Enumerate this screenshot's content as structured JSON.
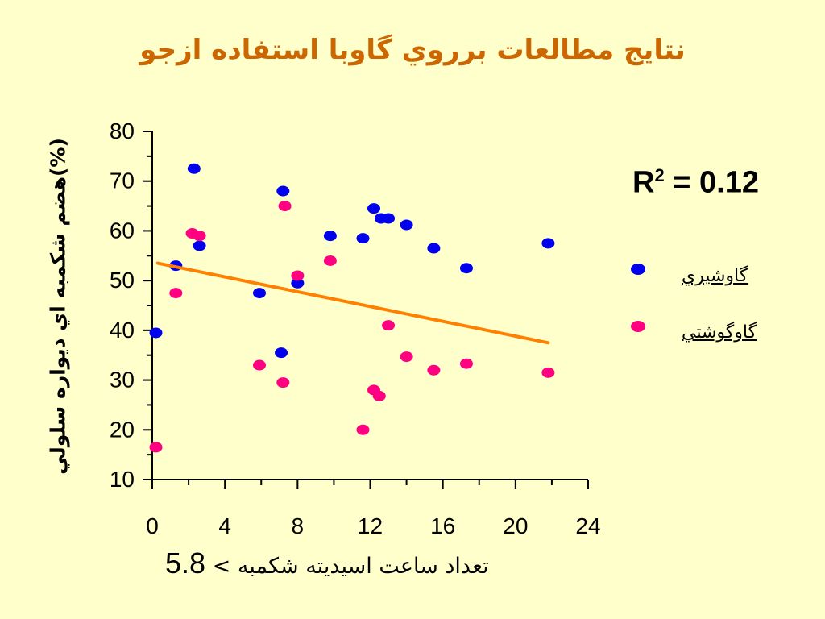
{
  "title": "نتايج مطالعات برروي گاوبا استفاده ازجو",
  "r2_label": "R",
  "r2_sup": "2",
  "r2_value": " = 0.12",
  "colors": {
    "background": "#ffffcc",
    "title": "#cc6600",
    "series1": "#0000ee",
    "series2": "#ff0080",
    "trend": "#ff8000"
  },
  "chart_data": {
    "type": "scatter",
    "xlabel_prefix": "5.8",
    "xlabel_text": " < تعداد ساعت اسيديته شکمبه",
    "ylabel": "هضم شکمبه اي ديواره سلولي(%)",
    "xlim": [
      0,
      24
    ],
    "ylim": [
      10,
      80
    ],
    "xticks": [
      "0",
      "4",
      "8",
      "12",
      "16",
      "20",
      "24"
    ],
    "yticks": [
      "10",
      "20",
      "30",
      "40",
      "50",
      "60",
      "70",
      "80"
    ],
    "series": [
      {
        "name": "گاوشيري",
        "color": "#0000ee",
        "points": [
          [
            0.2,
            39.5
          ],
          [
            1.3,
            53
          ],
          [
            2.3,
            72.5
          ],
          [
            2.6,
            57
          ],
          [
            5.9,
            47.5
          ],
          [
            7.1,
            35.5
          ],
          [
            7.2,
            68
          ],
          [
            8.0,
            49.5
          ],
          [
            9.8,
            59
          ],
          [
            11.6,
            58.5
          ],
          [
            12.2,
            64.5
          ],
          [
            12.6,
            62.5
          ],
          [
            13.0,
            62.5
          ],
          [
            14.0,
            61.2
          ],
          [
            15.5,
            56.5
          ],
          [
            17.3,
            52.5
          ],
          [
            21.8,
            57.5
          ]
        ]
      },
      {
        "name": "گاوگوشتي",
        "color": "#ff0080",
        "points": [
          [
            0.2,
            16.5
          ],
          [
            1.3,
            47.5
          ],
          [
            2.2,
            59.5
          ],
          [
            2.6,
            59
          ],
          [
            5.9,
            33
          ],
          [
            7.2,
            29.5
          ],
          [
            7.3,
            65
          ],
          [
            8.0,
            51
          ],
          [
            9.8,
            54
          ],
          [
            11.6,
            20
          ],
          [
            12.2,
            28
          ],
          [
            12.5,
            26.8
          ],
          [
            13.0,
            41
          ],
          [
            14.0,
            34.7
          ],
          [
            15.5,
            32
          ],
          [
            17.3,
            33.3
          ],
          [
            21.8,
            31.5
          ]
        ]
      }
    ],
    "trendline": {
      "x": [
        0.3,
        21.8
      ],
      "y": [
        53.5,
        37.5
      ]
    },
    "r_squared": 0.12
  }
}
